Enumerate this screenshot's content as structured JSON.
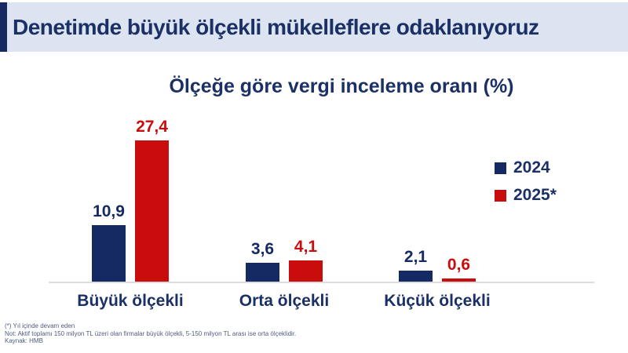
{
  "header": {
    "title": "Denetimde büyük ölçekli mükelleflere odaklanıyoruz"
  },
  "chart": {
    "title": "Ölçeğe göre vergi inceleme oranı (%)"
  },
  "chart_data": {
    "type": "bar",
    "title": "Ölçeğe göre vergi inceleme oranı (%)",
    "categories": [
      "Büyük ölçekli",
      "Orta ölçekli",
      "Küçük ölçekli"
    ],
    "series": [
      {
        "name": "2024",
        "color": "#152A62",
        "values": [
          10.9,
          3.6,
          2.1
        ],
        "labels": [
          "10,9",
          "3,6",
          "2,1"
        ]
      },
      {
        "name": "2025*",
        "color": "#C90D0D",
        "values": [
          27.4,
          4.1,
          0.6
        ],
        "labels": [
          "27,4",
          "4,1",
          "0,6"
        ]
      }
    ],
    "ylim": [
      0,
      30
    ],
    "grid": false,
    "legend_position": "right",
    "value_labels_shown": true,
    "decimal_separator": "comma"
  },
  "footnotes": [
    "(*) Yıl içinde devam eden",
    "Not:  Aktif toplamı 150 milyon TL üzeri olan firmalar büyük ölçekli, 5-150 milyon TL arası ise orta ölçeklidir.",
    "Kaynak: HMB"
  ],
  "colors": {
    "navy": "#152A62",
    "red": "#C90D0D",
    "banner_bg": "#DCE4F1",
    "title_text": "#1B3064",
    "baseline": "#DCDCDC",
    "footnote_text": "#505C80"
  }
}
